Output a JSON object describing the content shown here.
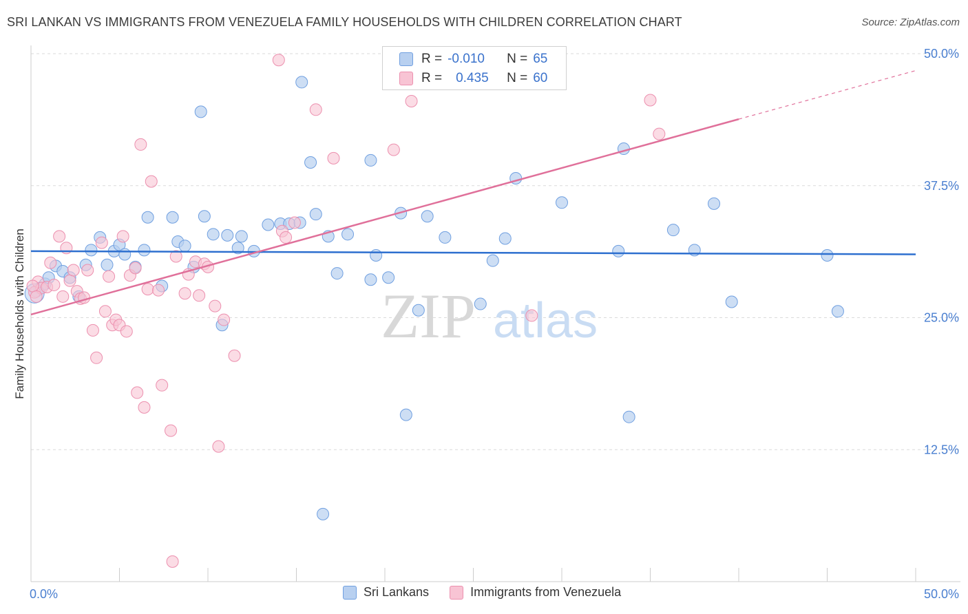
{
  "title": "SRI LANKAN VS IMMIGRANTS FROM VENEZUELA FAMILY HOUSEHOLDS WITH CHILDREN CORRELATION CHART",
  "source": "Source: ZipAtlas.com",
  "watermark": {
    "zip": "ZIP",
    "atlas": "atlas"
  },
  "colors": {
    "blue_fill": "#b8d0f0",
    "blue_stroke": "#6f9fe0",
    "blue_line": "#2d6fcf",
    "pink_fill": "#f8c4d4",
    "pink_stroke": "#ec8fae",
    "pink_line": "#e0709a",
    "tick_text": "#4a7fd0"
  },
  "legend": {
    "r_label": "R =",
    "n_label": "N =",
    "rows": [
      {
        "r": "-0.010",
        "n": "65"
      },
      {
        "r": "0.435",
        "n": "60"
      }
    ]
  },
  "chart_data": {
    "type": "scatter",
    "title": "SRI LANKAN VS IMMIGRANTS FROM VENEZUELA FAMILY HOUSEHOLDS WITH CHILDREN CORRELATION CHART",
    "xlabel": "",
    "ylabel": "Family Households with Children",
    "xlim": [
      0,
      50
    ],
    "ylim": [
      0,
      50
    ],
    "x_tick_labels": [
      "0.0%",
      "50.0%"
    ],
    "y_tick_labels": [
      "12.5%",
      "25.0%",
      "37.5%",
      "50.0%"
    ],
    "y_ticks": [
      12.5,
      25.0,
      37.5,
      50.0
    ],
    "grid": true,
    "legend_position": "bottom-center",
    "series": [
      {
        "name": "Sri Lankans",
        "r": -0.01,
        "n": 65,
        "trend": {
          "x": [
            0,
            50
          ],
          "y": [
            31.3,
            31.0
          ]
        },
        "points": [
          [
            0.3,
            27.5
          ],
          [
            0.5,
            27.8
          ],
          [
            0.8,
            28.2
          ],
          [
            1.0,
            28.8
          ],
          [
            1.4,
            29.9
          ],
          [
            1.8,
            29.4
          ],
          [
            2.2,
            28.8
          ],
          [
            2.7,
            27.0
          ],
          [
            3.1,
            30.0
          ],
          [
            3.4,
            31.4
          ],
          [
            3.9,
            32.6
          ],
          [
            4.3,
            30.0
          ],
          [
            4.7,
            31.3
          ],
          [
            5.0,
            31.9
          ],
          [
            5.3,
            31.0
          ],
          [
            5.9,
            29.8
          ],
          [
            6.4,
            31.4
          ],
          [
            6.6,
            34.5
          ],
          [
            7.4,
            28.0
          ],
          [
            8.0,
            34.5
          ],
          [
            8.3,
            32.2
          ],
          [
            8.7,
            31.8
          ],
          [
            9.2,
            29.8
          ],
          [
            9.6,
            44.5
          ],
          [
            9.8,
            34.6
          ],
          [
            10.3,
            32.9
          ],
          [
            10.8,
            24.3
          ],
          [
            11.1,
            32.8
          ],
          [
            11.7,
            31.6
          ],
          [
            11.9,
            32.7
          ],
          [
            12.6,
            31.3
          ],
          [
            13.4,
            33.8
          ],
          [
            14.1,
            33.9
          ],
          [
            14.6,
            33.9
          ],
          [
            15.2,
            34.0
          ],
          [
            15.3,
            47.3
          ],
          [
            15.8,
            39.7
          ],
          [
            16.1,
            34.8
          ],
          [
            16.5,
            6.4
          ],
          [
            16.8,
            32.7
          ],
          [
            17.3,
            29.2
          ],
          [
            17.9,
            32.9
          ],
          [
            19.2,
            39.9
          ],
          [
            19.2,
            28.6
          ],
          [
            19.5,
            30.9
          ],
          [
            20.2,
            28.8
          ],
          [
            20.9,
            34.9
          ],
          [
            21.2,
            15.8
          ],
          [
            21.9,
            25.7
          ],
          [
            22.4,
            34.6
          ],
          [
            23.4,
            32.6
          ],
          [
            25.4,
            26.3
          ],
          [
            26.1,
            30.4
          ],
          [
            26.8,
            32.5
          ],
          [
            27.4,
            38.2
          ],
          [
            30.0,
            35.9
          ],
          [
            33.2,
            31.3
          ],
          [
            33.5,
            41.0
          ],
          [
            33.8,
            15.6
          ],
          [
            36.3,
            33.3
          ],
          [
            37.5,
            31.4
          ],
          [
            38.6,
            35.8
          ],
          [
            39.6,
            26.5
          ],
          [
            45.0,
            30.9
          ],
          [
            45.6,
            25.6
          ]
        ]
      },
      {
        "name": "Immigrants from Venezuela",
        "r": 0.435,
        "n": 60,
        "trend": {
          "x": [
            0,
            40
          ],
          "y": [
            25.3,
            43.8
          ]
        },
        "trend_dashed": {
          "x": [
            40,
            50
          ],
          "y": [
            43.8,
            48.4
          ]
        },
        "points": [
          [
            0.2,
            27.4
          ],
          [
            0.4,
            28.4
          ],
          [
            0.6,
            27.8
          ],
          [
            0.9,
            27.9
          ],
          [
            1.3,
            28.1
          ],
          [
            1.6,
            32.7
          ],
          [
            1.8,
            27.0
          ],
          [
            2.0,
            31.6
          ],
          [
            2.2,
            28.5
          ],
          [
            2.4,
            29.5
          ],
          [
            2.6,
            27.5
          ],
          [
            2.8,
            26.8
          ],
          [
            3.0,
            26.9
          ],
          [
            3.2,
            29.5
          ],
          [
            3.5,
            23.8
          ],
          [
            3.7,
            21.2
          ],
          [
            4.0,
            32.1
          ],
          [
            4.2,
            25.6
          ],
          [
            4.4,
            28.9
          ],
          [
            4.6,
            24.3
          ],
          [
            4.8,
            24.8
          ],
          [
            5.0,
            24.3
          ],
          [
            5.2,
            32.7
          ],
          [
            5.4,
            23.7
          ],
          [
            5.6,
            29.0
          ],
          [
            5.9,
            29.7
          ],
          [
            6.0,
            17.9
          ],
          [
            6.2,
            41.4
          ],
          [
            6.4,
            16.5
          ],
          [
            6.6,
            27.7
          ],
          [
            6.8,
            37.9
          ],
          [
            7.2,
            27.6
          ],
          [
            7.4,
            18.6
          ],
          [
            7.9,
            14.3
          ],
          [
            8.2,
            30.8
          ],
          [
            8.0,
            1.9
          ],
          [
            8.7,
            27.3
          ],
          [
            8.9,
            29.1
          ],
          [
            9.3,
            30.3
          ],
          [
            9.5,
            27.1
          ],
          [
            9.8,
            30.1
          ],
          [
            10.0,
            29.8
          ],
          [
            10.4,
            26.1
          ],
          [
            10.6,
            12.8
          ],
          [
            10.9,
            24.8
          ],
          [
            11.5,
            21.4
          ],
          [
            14.0,
            49.4
          ],
          [
            14.2,
            33.2
          ],
          [
            14.4,
            32.6
          ],
          [
            14.9,
            34.0
          ],
          [
            16.1,
            44.7
          ],
          [
            17.1,
            40.1
          ],
          [
            20.5,
            40.9
          ],
          [
            21.5,
            45.5
          ],
          [
            28.3,
            25.2
          ],
          [
            35.0,
            45.6
          ],
          [
            35.5,
            42.4
          ],
          [
            0.1,
            28.0
          ],
          [
            0.3,
            27.0
          ],
          [
            1.1,
            30.2
          ]
        ]
      }
    ]
  },
  "bottom_legend": {
    "items": [
      {
        "label": "Sri Lankans"
      },
      {
        "label": "Immigrants from Venezuela"
      }
    ]
  }
}
